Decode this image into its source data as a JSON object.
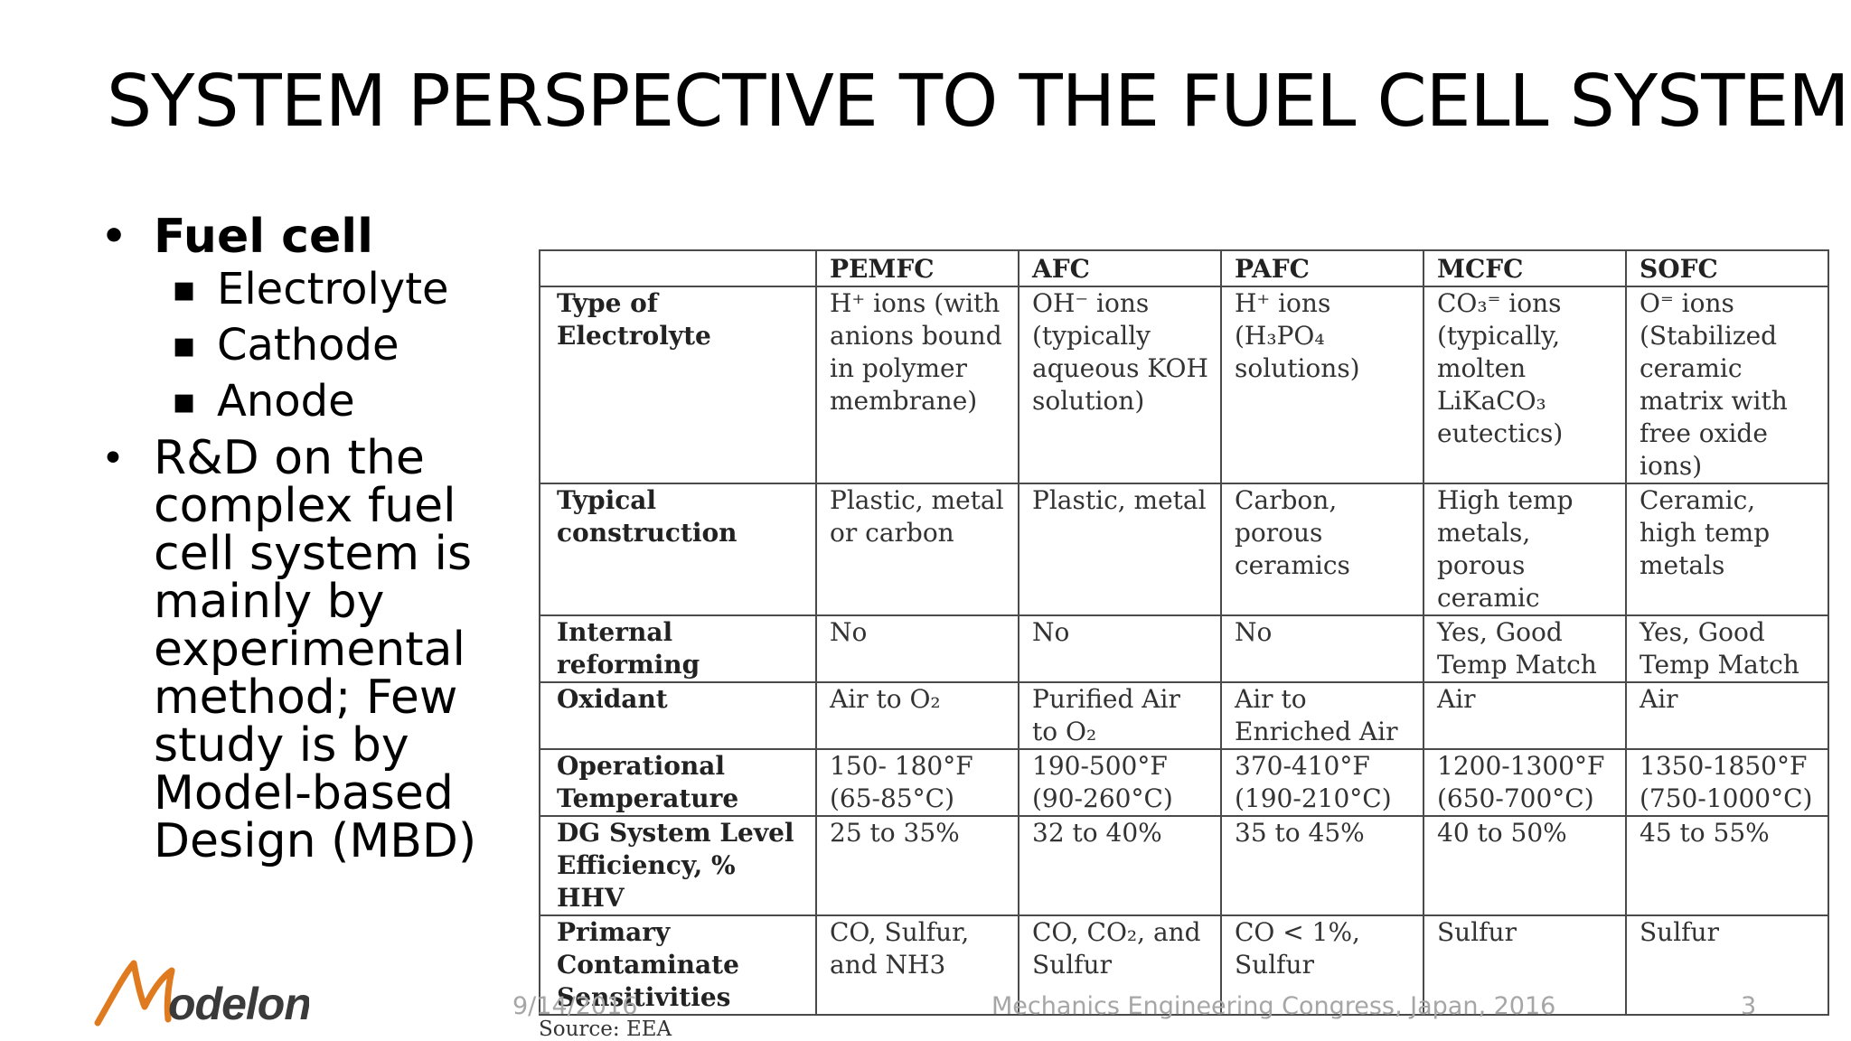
{
  "slide": {
    "title": "SYSTEM PERSPECTIVE TO THE FUEL CELL SYSTEM"
  },
  "bullets": {
    "fuel_cell": "Fuel cell",
    "sub_items": [
      "Electrolyte",
      "Cathode",
      "Anode"
    ],
    "rd_lines": [
      "R&D on the",
      "complex fuel",
      "cell system is",
      "mainly by",
      "experimental",
      "method; Few",
      "study is by",
      "Model-based",
      "Design (MBD)"
    ]
  },
  "table": {
    "headers": [
      "",
      "PEMFC",
      "AFC",
      "PAFC",
      "MCFC",
      "SOFC"
    ],
    "rows": [
      {
        "label": "Type of Electrolyte",
        "cells": [
          "H⁺ ions (with anions bound in polymer membrane)",
          "OH⁻ ions (typically aqueous KOH solution)",
          "H⁺ ions (H₃PO₄ solutions)",
          "CO₃⁼ ions (typically, molten LiKaCO₃ eutectics)",
          "O⁼ ions (Stabilized ceramic matrix with free oxide ions)"
        ]
      },
      {
        "label": "Typical construction",
        "cells": [
          "Plastic, metal or carbon",
          "Plastic, metal",
          "Carbon, porous ceramics",
          "High temp metals, porous ceramic",
          "Ceramic, high temp metals"
        ]
      },
      {
        "label": "Internal reforming",
        "cells": [
          "No",
          "No",
          "No",
          "Yes, Good Temp Match",
          "Yes, Good Temp Match"
        ]
      },
      {
        "label": "Oxidant",
        "cells": [
          "Air to O₂",
          "Purified Air to O₂",
          "Air to Enriched Air",
          "Air",
          "Air"
        ]
      },
      {
        "label": "Operational Temperature",
        "cells": [
          "150- 180°F (65-85°C)",
          "190-500°F (90-260°C)",
          "370-410°F (190-210°C)",
          "1200-1300°F (650-700°C)",
          "1350-1850°F (750-1000°C)"
        ]
      },
      {
        "label": "DG System Level Efficiency, % HHV",
        "cells": [
          "25 to 35%",
          "32 to 40%",
          "35 to 45%",
          "40 to 50%",
          "45 to 55%"
        ]
      },
      {
        "label": "Primary Contaminate Sensitivities",
        "cells": [
          "CO, Sulfur, and NH3",
          "CO, CO₂, and Sulfur",
          "CO < 1%, Sulfur",
          "Sulfur",
          "Sulfur"
        ]
      }
    ],
    "source": "Source:  EEA"
  },
  "footer": {
    "logo_text": "Modelon",
    "date": "9/14/2016",
    "event": "Mechanics Engineering Congress, Japan, 2016",
    "page_number": "3"
  },
  "colors": {
    "logo_orange": "#e07a1f",
    "logo_text": "#3a3a3a",
    "footer_text": "#a6a6a6"
  }
}
